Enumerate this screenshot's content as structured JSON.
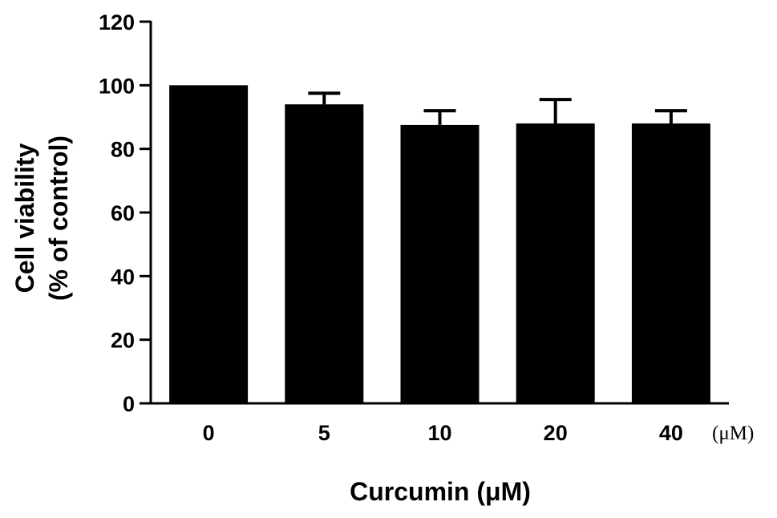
{
  "chart_data": {
    "type": "bar",
    "categories": [
      "0",
      "5",
      "10",
      "20",
      "40"
    ],
    "values": [
      100,
      94,
      87.5,
      88,
      88
    ],
    "errors": [
      0,
      3.5,
      4.5,
      7.5,
      4
    ],
    "ylabel_lines": [
      "Cell viability",
      "(% of control)"
    ],
    "xlabel": "Curcumin (μM)",
    "x_unit": "(μM)",
    "ylim": [
      0,
      120
    ],
    "yticks": [
      0,
      20,
      40,
      60,
      80,
      100,
      120
    ],
    "grid": false,
    "bar_color": "#000000"
  }
}
